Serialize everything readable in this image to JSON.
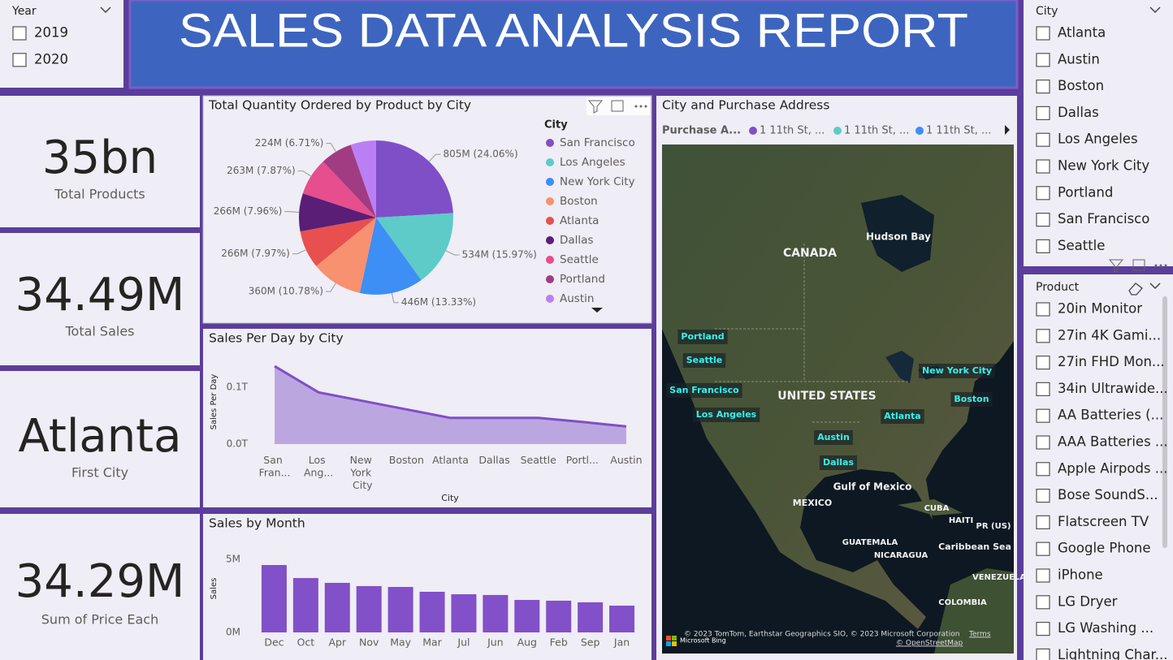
{
  "header": {
    "title": "SALES DATA ANALYSIS REPORT"
  },
  "year_slicer": {
    "title": "Year",
    "options": [
      "2019",
      "2020"
    ]
  },
  "city_slicer": {
    "title": "City",
    "options": [
      "Atlanta",
      "Austin",
      "Boston",
      "Dallas",
      "Los Angeles",
      "New York City",
      "Portland",
      "San Francisco",
      "Seattle"
    ]
  },
  "product_slicer": {
    "title": "Product",
    "options": [
      "20in Monitor",
      "27in 4K Gami...",
      "27in FHD Mon...",
      "34in Ultrawide...",
      "AA Batteries (...",
      "AAA Batteries ...",
      "Apple Airpods ...",
      "Bose SoundS...",
      "Flatscreen TV",
      "Google Phone",
      "iPhone",
      "LG Dryer",
      "LG Washing ...",
      "Lightning Char..."
    ]
  },
  "cards": [
    {
      "value": "35bn",
      "label": "Total Products"
    },
    {
      "value": "34.49M",
      "label": "Total Sales"
    },
    {
      "value": "Atlanta",
      "label": "First City"
    },
    {
      "value": "34.29M",
      "label": "Sum of Price Each"
    }
  ],
  "chart_data": [
    {
      "type": "pie",
      "title": "Total Quantity Ordered by Product by City",
      "legend_title": "City",
      "categories": [
        "San Francisco",
        "Los Angeles",
        "New York City",
        "Boston",
        "Atlanta",
        "Dallas",
        "Seattle",
        "Portland",
        "Austin"
      ],
      "values": [
        805,
        534,
        446,
        360,
        266,
        266,
        263,
        224,
        179
      ],
      "value_labels": [
        "805M (24.06%)",
        "534M (15.97%)",
        "446M (13.33%)",
        "360M (10.78%)",
        "266M (7.97%)",
        "266M (7.96%)",
        "263M (7.87%)",
        "224M (6.71%)",
        null
      ],
      "colors": [
        "#7f4fc7",
        "#5ecbc8",
        "#3d8ef5",
        "#f7916f",
        "#e8504f",
        "#5a1e76",
        "#e64e8d",
        "#a13c82",
        "#bb7ff5"
      ]
    },
    {
      "type": "area",
      "title": "Sales Per Day by City",
      "x_label": "City",
      "y_label": "Sales Per Day",
      "categories": [
        "San Fran...",
        "Los Ang...",
        "New York City",
        "Boston",
        "Atlanta",
        "Dallas",
        "Seattle",
        "Portl...",
        "Austin"
      ],
      "values": [
        0.137,
        0.091,
        0.076,
        0.061,
        0.046,
        0.046,
        0.046,
        0.039,
        0.031
      ],
      "color": "#7f4fc7",
      "ylim": [
        0,
        0.15
      ],
      "yticks": [
        {
          "value": 0,
          "label": "0.0T"
        },
        {
          "value": 0.1,
          "label": "0.1T"
        }
      ]
    },
    {
      "type": "bar",
      "title": "Sales by Month",
      "y_label": "Sales",
      "categories": [
        "Dec",
        "Oct",
        "Apr",
        "Nov",
        "May",
        "Mar",
        "Jul",
        "Jun",
        "Aug",
        "Feb",
        "Sep",
        "Jan"
      ],
      "values": [
        4.61,
        3.72,
        3.39,
        3.17,
        3.11,
        2.78,
        2.61,
        2.56,
        2.22,
        2.17,
        2.06,
        1.83
      ],
      "color": "#8250c8",
      "ylim": [
        0,
        5.5
      ],
      "yticks": [
        {
          "value": 0,
          "label": "0M"
        },
        {
          "value": 5,
          "label": "5M"
        }
      ]
    }
  ],
  "map": {
    "title": "City and Purchase Address",
    "legend_title": "Purchase A...",
    "legend_items": [
      {
        "name": "1 11th St, ...",
        "color": "#7f4fc7"
      },
      {
        "name": "1 11th St, ...",
        "color": "#5ecbc8"
      },
      {
        "name": "1 11th St, ...",
        "color": "#3d8ef5"
      }
    ],
    "places": [
      "CANADA",
      "Hudson Bay",
      "UNITED STATES",
      "Gulf of Mexico",
      "MEXICO",
      "CUBA",
      "HAITI",
      "PR (US)",
      "GUATEMALA",
      "NICARAGUA",
      "Caribbean Sea",
      "VENEZUELA",
      "COLOMBIA"
    ],
    "cities": [
      "Portland",
      "Seattle",
      "San Francisco",
      "Los Angeles",
      "New York City",
      "Boston",
      "Atlanta",
      "Austin",
      "Dallas"
    ],
    "attribution": "© 2023 TomTom, Earthstar Geographics SIO, © 2023 Microsoft Corporation",
    "terms": "Terms",
    "osm": "© OpenStreetMap",
    "brand": "Microsoft Bing"
  }
}
